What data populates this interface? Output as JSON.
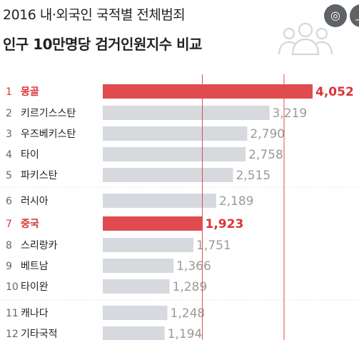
{
  "title_line1": "2016 내·외국인 국적별 전체범죄",
  "title_line2": "인구 10만명당 검거인원지수 비교",
  "icons": {
    "people": "people-group-icon",
    "lens": "google-lens-icon",
    "share": "share-icon"
  },
  "colors": {
    "highlight": "#e04b4f",
    "bar": "#d6d9dd",
    "highlight_label": "#d9353a",
    "label": "#9a9a9a",
    "text": "#222222"
  },
  "chart_data": {
    "type": "bar",
    "orientation": "horizontal",
    "title": "2016 내·외국인 국적별 전체범죄 인구 10만명당 검거인원지수 비교",
    "xlabel": "",
    "ylabel": "",
    "xlim": [
      0,
      4300
    ],
    "grid": false,
    "legend": "none",
    "reference_lines": [
      1923
    ],
    "categories": [
      {
        "rank": "1",
        "name": "몽골",
        "value": 4052,
        "label": "4,052",
        "highlight": true
      },
      {
        "rank": "2",
        "name": "키르기스스탄",
        "value": 3219,
        "label": "3,219",
        "highlight": false
      },
      {
        "rank": "3",
        "name": "우즈베키스탄",
        "value": 2790,
        "label": "2,790",
        "highlight": false
      },
      {
        "rank": "4",
        "name": "타이",
        "value": 2758,
        "label": "2,758",
        "highlight": false
      },
      {
        "rank": "5",
        "name": "파키스탄",
        "value": 2515,
        "label": "2,515",
        "highlight": false
      },
      {
        "rank": "6",
        "name": "러시아",
        "value": 2189,
        "label": "2,189",
        "highlight": false
      },
      {
        "rank": "7",
        "name": "중국",
        "value": 1923,
        "label": "1,923",
        "highlight": true
      },
      {
        "rank": "8",
        "name": "스리랑카",
        "value": 1751,
        "label": "1,751",
        "highlight": false
      },
      {
        "rank": "9",
        "name": "베트남",
        "value": 1366,
        "label": "1,366",
        "highlight": false
      },
      {
        "rank": "10",
        "name": "타이완",
        "value": 1289,
        "label": "1,289",
        "highlight": false
      },
      {
        "rank": "11",
        "name": "캐나다",
        "value": 1248,
        "label": "1,248",
        "highlight": false
      },
      {
        "rank": "12",
        "name": "기타국적",
        "value": 1194,
        "label": "1,194",
        "highlight": false
      }
    ]
  }
}
